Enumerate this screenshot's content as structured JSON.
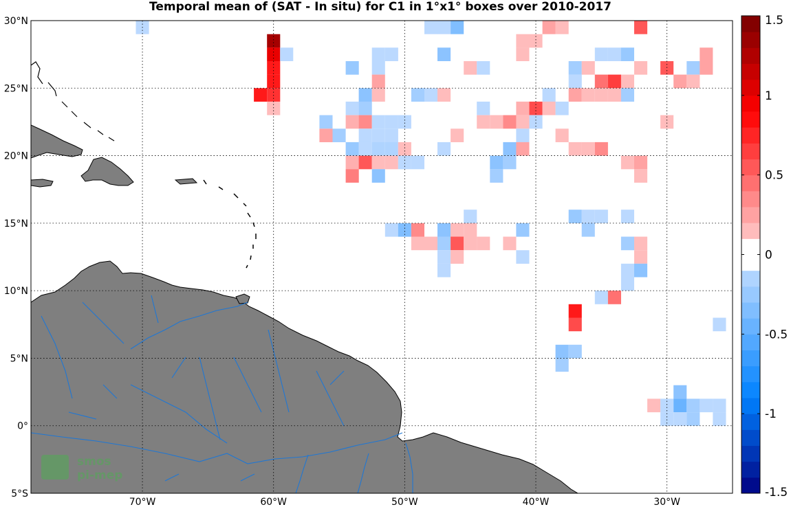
{
  "title": "Temporal mean of (SAT - In situ) for C1 in 1°x1° boxes over 2010-2017",
  "map": {
    "lon_range": [
      -78.5,
      -25
    ],
    "lat_range": [
      -5,
      30
    ],
    "lon_ticks": [
      {
        "lon": -70,
        "label": "70°W"
      },
      {
        "lon": -60,
        "label": "60°W"
      },
      {
        "lon": -50,
        "label": "50°W"
      },
      {
        "lon": -40,
        "label": "40°W"
      },
      {
        "lon": -30,
        "label": "30°W"
      }
    ],
    "lat_ticks": [
      {
        "lat": 30,
        "label": "30°N"
      },
      {
        "lat": 25,
        "label": "25°N"
      },
      {
        "lat": 20,
        "label": "20°N"
      },
      {
        "lat": 15,
        "label": "15°N"
      },
      {
        "lat": 10,
        "label": "10°N"
      },
      {
        "lat": 5,
        "label": "5°N"
      },
      {
        "lat": 0,
        "label": "0°"
      },
      {
        "lat": -5,
        "label": "5°S"
      }
    ],
    "grid": true,
    "land_color": "#7f7f7f",
    "river_color": "#1f77d4",
    "logo": {
      "line1": "smos",
      "line2": "pi-mep",
      "color": "#4caf50"
    }
  },
  "colorbar": {
    "min": -1.5,
    "max": 1.5,
    "step": 0.1,
    "ticks": [
      {
        "value": 1.5,
        "label": "1.5"
      },
      {
        "value": 1,
        "label": "1"
      },
      {
        "value": 0.5,
        "label": "0.5"
      },
      {
        "value": 0,
        "label": "0"
      },
      {
        "value": -0.5,
        "label": "-0.5"
      },
      {
        "value": -1,
        "label": "-1"
      },
      {
        "value": -1.5,
        "label": "-1.5"
      }
    ]
  },
  "chart_data": {
    "type": "heatmap",
    "title": "Temporal mean of (SAT - In situ) for C1 in 1°x1° boxes over 2010-2017",
    "xlabel": "",
    "ylabel": "",
    "cell_size_deg": 1,
    "cells": [
      {
        "lon": -70,
        "lat": 29.5,
        "value": -0.1
      },
      {
        "lon": -60,
        "lat": 28.5,
        "value": 1.3
      },
      {
        "lon": -60,
        "lat": 27.5,
        "value": 1.0
      },
      {
        "lon": -59,
        "lat": 27.5,
        "value": -0.1
      },
      {
        "lon": -60,
        "lat": 26.5,
        "value": 0.8
      },
      {
        "lon": -60,
        "lat": 25.5,
        "value": 0.8
      },
      {
        "lon": -61,
        "lat": 24.5,
        "value": 0.8
      },
      {
        "lon": -60,
        "lat": 24.5,
        "value": 0.7
      },
      {
        "lon": -60,
        "lat": 23.5,
        "value": 0.15
      },
      {
        "lon": -48,
        "lat": 29.5,
        "value": -0.1
      },
      {
        "lon": -47,
        "lat": 29.5,
        "value": -0.1
      },
      {
        "lon": -46,
        "lat": 29.5,
        "value": -0.35
      },
      {
        "lon": -39,
        "lat": 29.5,
        "value": 0.25
      },
      {
        "lon": -38,
        "lat": 29.5,
        "value": 0.15
      },
      {
        "lon": -32,
        "lat": 29.5,
        "value": 0.55
      },
      {
        "lon": -41,
        "lat": 28.5,
        "value": 0.15
      },
      {
        "lon": -40,
        "lat": 28.5,
        "value": 0.15
      },
      {
        "lon": -52,
        "lat": 27.5,
        "value": -0.1
      },
      {
        "lon": -51,
        "lat": 27.5,
        "value": -0.1
      },
      {
        "lon": -47,
        "lat": 27.5,
        "value": -0.3
      },
      {
        "lon": -41,
        "lat": 27.5,
        "value": 0.15
      },
      {
        "lon": -35,
        "lat": 27.5,
        "value": -0.1
      },
      {
        "lon": -34,
        "lat": 27.5,
        "value": -0.1
      },
      {
        "lon": -33,
        "lat": 27.5,
        "value": -0.25
      },
      {
        "lon": -27,
        "lat": 27.5,
        "value": 0.25
      },
      {
        "lon": -54,
        "lat": 26.5,
        "value": -0.25
      },
      {
        "lon": -52,
        "lat": 26.5,
        "value": -0.1
      },
      {
        "lon": -45,
        "lat": 26.5,
        "value": 0.15
      },
      {
        "lon": -44,
        "lat": 26.5,
        "value": -0.1
      },
      {
        "lon": -37,
        "lat": 26.5,
        "value": -0.2
      },
      {
        "lon": -36,
        "lat": 26.5,
        "value": 0.15
      },
      {
        "lon": -32,
        "lat": 26.5,
        "value": 0.15
      },
      {
        "lon": -30,
        "lat": 26.5,
        "value": 0.55
      },
      {
        "lon": -28,
        "lat": 26.5,
        "value": -0.2
      },
      {
        "lon": -27,
        "lat": 26.5,
        "value": 0.25
      },
      {
        "lon": -52,
        "lat": 25.5,
        "value": 0.25
      },
      {
        "lon": -37,
        "lat": 25.5,
        "value": -0.1
      },
      {
        "lon": -35,
        "lat": 25.5,
        "value": 0.45
      },
      {
        "lon": -34,
        "lat": 25.5,
        "value": 0.65
      },
      {
        "lon": -33,
        "lat": 25.5,
        "value": 0.15
      },
      {
        "lon": -29,
        "lat": 25.5,
        "value": 0.25
      },
      {
        "lon": -28,
        "lat": 25.5,
        "value": 0.15
      },
      {
        "lon": -53,
        "lat": 24.5,
        "value": -0.3
      },
      {
        "lon": -52,
        "lat": 24.5,
        "value": 0.15
      },
      {
        "lon": -49,
        "lat": 24.5,
        "value": -0.2
      },
      {
        "lon": -48,
        "lat": 24.5,
        "value": -0.1
      },
      {
        "lon": -47,
        "lat": 24.5,
        "value": 0.15
      },
      {
        "lon": -39,
        "lat": 24.5,
        "value": -0.1
      },
      {
        "lon": -37,
        "lat": 24.5,
        "value": 0.25
      },
      {
        "lon": -36,
        "lat": 24.5,
        "value": 0.15
      },
      {
        "lon": -35,
        "lat": 24.5,
        "value": 0.15
      },
      {
        "lon": -34,
        "lat": 24.5,
        "value": 0.15
      },
      {
        "lon": -33,
        "lat": 24.5,
        "value": -0.2
      },
      {
        "lon": -54,
        "lat": 23.5,
        "value": -0.1
      },
      {
        "lon": -53,
        "lat": 23.5,
        "value": -0.2
      },
      {
        "lon": -44,
        "lat": 23.5,
        "value": -0.1
      },
      {
        "lon": -41,
        "lat": 23.5,
        "value": 0.2
      },
      {
        "lon": -40,
        "lat": 23.5,
        "value": 0.6
      },
      {
        "lon": -39,
        "lat": 23.5,
        "value": 0.15
      },
      {
        "lon": -38,
        "lat": 23.5,
        "value": -0.1
      },
      {
        "lon": -56,
        "lat": 22.5,
        "value": -0.2
      },
      {
        "lon": -54,
        "lat": 22.5,
        "value": 0.2
      },
      {
        "lon": -53,
        "lat": 22.5,
        "value": 0.35
      },
      {
        "lon": -52,
        "lat": 22.5,
        "value": -0.1
      },
      {
        "lon": -51,
        "lat": 22.5,
        "value": -0.1
      },
      {
        "lon": -50,
        "lat": 22.5,
        "value": -0.1
      },
      {
        "lon": -44,
        "lat": 22.5,
        "value": 0.15
      },
      {
        "lon": -43,
        "lat": 22.5,
        "value": 0.15
      },
      {
        "lon": -42,
        "lat": 22.5,
        "value": 0.35
      },
      {
        "lon": -41,
        "lat": 22.5,
        "value": 0.15
      },
      {
        "lon": -40,
        "lat": 22.5,
        "value": -0.1
      },
      {
        "lon": -30,
        "lat": 22.5,
        "value": 0.15
      },
      {
        "lon": -56,
        "lat": 21.5,
        "value": 0.25
      },
      {
        "lon": -55,
        "lat": 21.5,
        "value": -0.2
      },
      {
        "lon": -53,
        "lat": 21.5,
        "value": -0.1
      },
      {
        "lon": -52,
        "lat": 21.5,
        "value": -0.1
      },
      {
        "lon": -51,
        "lat": 21.5,
        "value": -0.1
      },
      {
        "lon": -46,
        "lat": 21.5,
        "value": 0.15
      },
      {
        "lon": -41,
        "lat": 21.5,
        "value": -0.1
      },
      {
        "lon": -38,
        "lat": 21.5,
        "value": 0.15
      },
      {
        "lon": -54,
        "lat": 20.5,
        "value": -0.25
      },
      {
        "lon": -53,
        "lat": 20.5,
        "value": -0.1
      },
      {
        "lon": -52,
        "lat": 20.5,
        "value": -0.15
      },
      {
        "lon": -51,
        "lat": 20.5,
        "value": -0.15
      },
      {
        "lon": -50,
        "lat": 20.5,
        "value": 0.15
      },
      {
        "lon": -47,
        "lat": 20.5,
        "value": -0.1
      },
      {
        "lon": -42,
        "lat": 20.5,
        "value": -0.3
      },
      {
        "lon": -41,
        "lat": 20.5,
        "value": 0.25
      },
      {
        "lon": -37,
        "lat": 20.5,
        "value": 0.15
      },
      {
        "lon": -36,
        "lat": 20.5,
        "value": 0.15
      },
      {
        "lon": -35,
        "lat": 20.5,
        "value": 0.35
      },
      {
        "lon": -54,
        "lat": 19.5,
        "value": 0.2
      },
      {
        "lon": -53,
        "lat": 19.5,
        "value": 0.55
      },
      {
        "lon": -52,
        "lat": 19.5,
        "value": 0.15
      },
      {
        "lon": -51,
        "lat": 19.5,
        "value": 0.15
      },
      {
        "lon": -50,
        "lat": 19.5,
        "value": -0.1
      },
      {
        "lon": -49,
        "lat": 19.5,
        "value": -0.1
      },
      {
        "lon": -43,
        "lat": 19.5,
        "value": -0.3
      },
      {
        "lon": -42,
        "lat": 19.5,
        "value": -0.2
      },
      {
        "lon": -33,
        "lat": 19.5,
        "value": 0.15
      },
      {
        "lon": -32,
        "lat": 19.5,
        "value": 0.25
      },
      {
        "lon": -54,
        "lat": 18.5,
        "value": 0.4
      },
      {
        "lon": -52,
        "lat": 18.5,
        "value": -0.3
      },
      {
        "lon": -43,
        "lat": 18.5,
        "value": -0.2
      },
      {
        "lon": -32,
        "lat": 18.5,
        "value": 0.15
      },
      {
        "lon": -45,
        "lat": 15.5,
        "value": -0.1
      },
      {
        "lon": -37,
        "lat": 15.5,
        "value": -0.25
      },
      {
        "lon": -36,
        "lat": 15.5,
        "value": -0.1
      },
      {
        "lon": -35,
        "lat": 15.5,
        "value": -0.1
      },
      {
        "lon": -33,
        "lat": 15.5,
        "value": -0.1
      },
      {
        "lon": -51,
        "lat": 14.5,
        "value": -0.1
      },
      {
        "lon": -50,
        "lat": 14.5,
        "value": -0.35
      },
      {
        "lon": -49,
        "lat": 14.5,
        "value": 0.35
      },
      {
        "lon": -47,
        "lat": 14.5,
        "value": -0.3
      },
      {
        "lon": -46,
        "lat": 14.5,
        "value": 0.15
      },
      {
        "lon": -45,
        "lat": 14.5,
        "value": 0.15
      },
      {
        "lon": -41,
        "lat": 14.5,
        "value": -0.25
      },
      {
        "lon": -36,
        "lat": 14.5,
        "value": -0.2
      },
      {
        "lon": -49,
        "lat": 13.5,
        "value": 0.15
      },
      {
        "lon": -48,
        "lat": 13.5,
        "value": 0.15
      },
      {
        "lon": -47,
        "lat": 13.5,
        "value": -0.2
      },
      {
        "lon": -46,
        "lat": 13.5,
        "value": 0.55
      },
      {
        "lon": -45,
        "lat": 13.5,
        "value": 0.15
      },
      {
        "lon": -44,
        "lat": 13.5,
        "value": 0.15
      },
      {
        "lon": -42,
        "lat": 13.5,
        "value": 0.15
      },
      {
        "lon": -33,
        "lat": 13.5,
        "value": -0.2
      },
      {
        "lon": -32,
        "lat": 13.5,
        "value": 0.15
      },
      {
        "lon": -47,
        "lat": 12.5,
        "value": -0.1
      },
      {
        "lon": -46,
        "lat": 12.5,
        "value": 0.15
      },
      {
        "lon": -41,
        "lat": 12.5,
        "value": -0.1
      },
      {
        "lon": -32,
        "lat": 12.5,
        "value": 0.15
      },
      {
        "lon": -47,
        "lat": 11.5,
        "value": -0.1
      },
      {
        "lon": -33,
        "lat": 11.5,
        "value": -0.1
      },
      {
        "lon": -32,
        "lat": 11.5,
        "value": -0.3
      },
      {
        "lon": -33,
        "lat": 10.5,
        "value": -0.1
      },
      {
        "lon": -35,
        "lat": 9.5,
        "value": -0.1
      },
      {
        "lon": -34,
        "lat": 9.5,
        "value": 0.45
      },
      {
        "lon": -37,
        "lat": 8.5,
        "value": 0.8
      },
      {
        "lon": -37,
        "lat": 7.5,
        "value": 0.6
      },
      {
        "lon": -26,
        "lat": 7.5,
        "value": -0.1
      },
      {
        "lon": -38,
        "lat": 5.5,
        "value": -0.3
      },
      {
        "lon": -37,
        "lat": 5.5,
        "value": -0.2
      },
      {
        "lon": -38,
        "lat": 4.5,
        "value": -0.2
      },
      {
        "lon": -29,
        "lat": 2.5,
        "value": -0.3
      },
      {
        "lon": -31,
        "lat": 1.5,
        "value": 0.15
      },
      {
        "lon": -30,
        "lat": 1.5,
        "value": -0.1
      },
      {
        "lon": -29,
        "lat": 1.5,
        "value": -0.45
      },
      {
        "lon": -28,
        "lat": 1.5,
        "value": -0.2
      },
      {
        "lon": -27,
        "lat": 1.5,
        "value": -0.1
      },
      {
        "lon": -26,
        "lat": 1.5,
        "value": -0.1
      },
      {
        "lon": -30,
        "lat": 0.5,
        "value": -0.1
      },
      {
        "lon": -29,
        "lat": 0.5,
        "value": -0.1
      },
      {
        "lon": -28,
        "lat": 0.5,
        "value": -0.2
      },
      {
        "lon": -26,
        "lat": 0.5,
        "value": -0.1
      }
    ]
  }
}
